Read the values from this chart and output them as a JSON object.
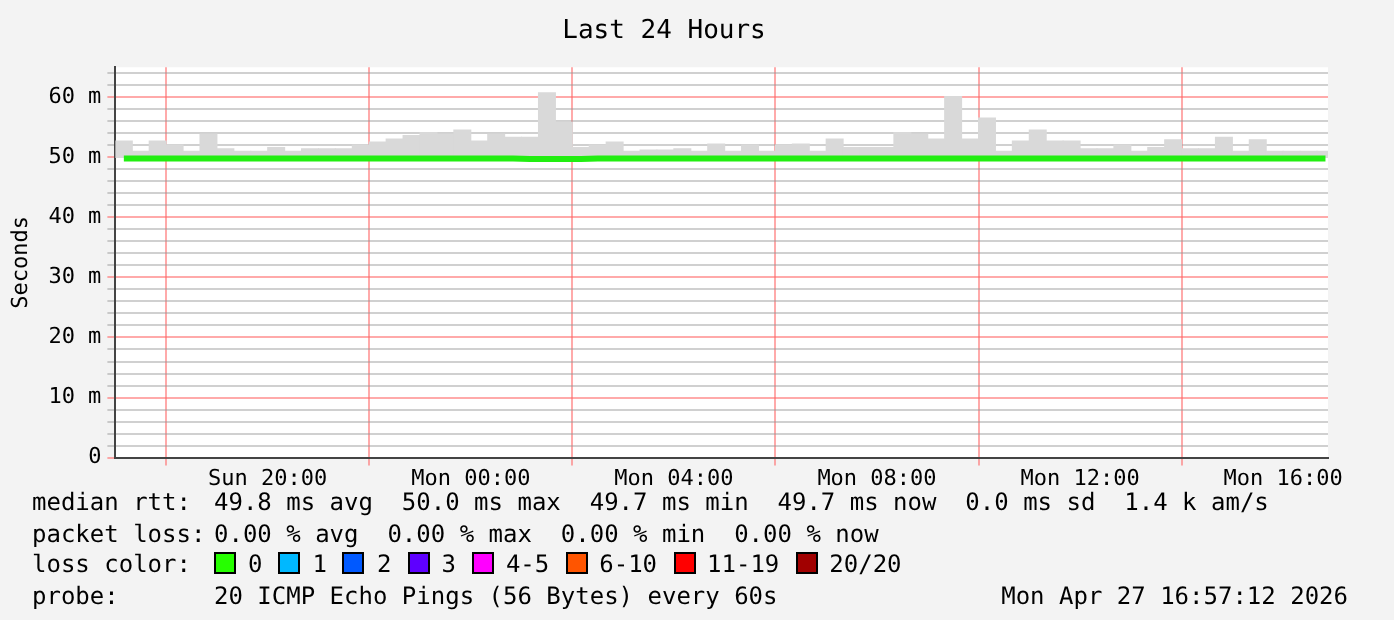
{
  "chart_data": {
    "type": "bar",
    "title": "Last 24 Hours",
    "ylabel": "Seconds",
    "x": [
      "2026-04-26T17:10",
      "2026-04-26T17:30",
      "2026-04-26T17:50",
      "2026-04-26T18:10",
      "2026-04-26T18:30",
      "2026-04-26T18:50",
      "2026-04-26T19:10",
      "2026-04-26T19:30",
      "2026-04-26T19:50",
      "2026-04-26T20:10",
      "2026-04-26T20:30",
      "2026-04-26T20:50",
      "2026-04-26T21:10",
      "2026-04-26T21:30",
      "2026-04-26T21:50",
      "2026-04-26T22:10",
      "2026-04-26T22:30",
      "2026-04-26T22:50",
      "2026-04-26T23:10",
      "2026-04-26T23:30",
      "2026-04-26T23:50",
      "2026-04-27T00:10",
      "2026-04-27T00:30",
      "2026-04-27T00:50",
      "2026-04-27T01:10",
      "2026-04-27T01:30",
      "2026-04-27T01:50",
      "2026-04-27T02:10",
      "2026-04-27T02:30",
      "2026-04-27T02:50",
      "2026-04-27T03:10",
      "2026-04-27T03:30",
      "2026-04-27T03:50",
      "2026-04-27T04:10",
      "2026-04-27T04:30",
      "2026-04-27T04:50",
      "2026-04-27T05:10",
      "2026-04-27T05:30",
      "2026-04-27T05:50",
      "2026-04-27T06:10",
      "2026-04-27T06:30",
      "2026-04-27T06:50",
      "2026-04-27T07:10",
      "2026-04-27T07:30",
      "2026-04-27T07:50",
      "2026-04-27T08:10",
      "2026-04-27T08:30",
      "2026-04-27T08:50",
      "2026-04-27T09:10",
      "2026-04-27T09:30",
      "2026-04-27T09:50",
      "2026-04-27T10:10",
      "2026-04-27T10:30",
      "2026-04-27T10:50",
      "2026-04-27T11:10",
      "2026-04-27T11:30",
      "2026-04-27T11:50",
      "2026-04-27T12:10",
      "2026-04-27T12:30",
      "2026-04-27T12:50",
      "2026-04-27T13:10",
      "2026-04-27T13:30",
      "2026-04-27T13:50",
      "2026-04-27T14:10",
      "2026-04-27T14:30",
      "2026-04-27T14:50",
      "2026-04-27T15:10",
      "2026-04-27T15:30",
      "2026-04-27T15:50",
      "2026-04-27T16:10",
      "2026-04-27T16:30",
      "2026-04-27T16:50"
    ],
    "series": [
      {
        "color": "#d9d9d9",
        "base": [
          50,
          50,
          50,
          50,
          50,
          50,
          50,
          50,
          50,
          50,
          50,
          50,
          50,
          50,
          50,
          50,
          50,
          50,
          50,
          50,
          50,
          50,
          50,
          50,
          50,
          50,
          50,
          50,
          50,
          50,
          50,
          50,
          50,
          50,
          50,
          50,
          50,
          50,
          50,
          50,
          50,
          50,
          50,
          50,
          50,
          50,
          50,
          50,
          50,
          50,
          50,
          50,
          50,
          50,
          50,
          50,
          50,
          50,
          50,
          50,
          50,
          50,
          50,
          50,
          50,
          50,
          50,
          50,
          50,
          50,
          50,
          50
        ],
        "values": [
          2.7,
          1,
          2.7,
          2,
          1,
          3.8,
          1.4,
          1,
          1,
          1.6,
          1,
          1.4,
          1.4,
          1.4,
          2,
          2.5,
          3,
          3.6,
          4.1,
          3.8,
          4.5,
          2.7,
          3.8,
          3.3,
          3.3,
          10.7,
          5.8,
          1.6,
          2,
          2.5,
          1,
          1.2,
          1.2,
          1.4,
          1,
          2.2,
          1,
          2,
          1,
          2,
          2.2,
          1,
          3,
          1.6,
          1.6,
          1.6,
          4.1,
          3.8,
          3,
          10.1,
          3,
          6.5,
          1,
          2.7,
          4.5,
          2.7,
          2.7,
          1.4,
          1.4,
          2,
          1,
          1.6,
          2.9,
          1.4,
          1.4,
          3.3,
          1,
          2.9,
          1,
          1,
          1,
          1
        ]
      },
      {
        "type": "line",
        "color": "#22ee11",
        "values": [
          49.8,
          49.8,
          49.8,
          49.8,
          49.8,
          49.8,
          49.8,
          49.8,
          49.8,
          49.8,
          49.8,
          49.8,
          49.8,
          49.8,
          49.8,
          49.8,
          49.8,
          49.8,
          49.8,
          49.8,
          49.8,
          49.8,
          49.8,
          49.8,
          49.7,
          49.7,
          49.7,
          49.7,
          49.8,
          49.8,
          49.8,
          49.8,
          49.8,
          49.8,
          49.8,
          49.8,
          49.8,
          49.8,
          49.8,
          49.8,
          49.8,
          49.8,
          49.8,
          49.8,
          49.8,
          49.8,
          49.8,
          49.8,
          49.8,
          49.8,
          49.8,
          49.8,
          49.8,
          49.8,
          49.8,
          49.8,
          49.8,
          49.8,
          49.8,
          49.8,
          49.8,
          49.8,
          49.8,
          49.8,
          49.8,
          49.8,
          49.8,
          49.8,
          49.8,
          49.8,
          49.8,
          49.8
        ]
      }
    ],
    "xlim": [
      "2026-04-26T17:00",
      "2026-04-27T16:53"
    ],
    "xticks": [
      {
        "value": "2026-04-26T20:00",
        "label": "Sun 20:00"
      },
      {
        "value": "2026-04-27T00:00",
        "label": "Mon 00:00"
      },
      {
        "value": "2026-04-27T04:00",
        "label": "Mon 04:00"
      },
      {
        "value": "2026-04-27T08:00",
        "label": "Mon 08:00"
      },
      {
        "value": "2026-04-27T12:00",
        "label": "Mon 12:00"
      },
      {
        "value": "2026-04-27T16:00",
        "label": "Mon 16:00"
      }
    ],
    "ylim": [
      0,
      65
    ],
    "yticks": [
      0,
      {
        "value": 2,
        "label": null
      },
      {
        "value": 4,
        "label": null
      },
      {
        "value": 6,
        "label": null
      },
      {
        "value": 8,
        "label": null
      },
      {
        "value": 10,
        "label": "10 m"
      },
      {
        "value": 12,
        "label": null
      },
      {
        "value": 14,
        "label": null
      },
      {
        "value": 16,
        "label": null
      },
      {
        "value": 18,
        "label": null
      },
      {
        "value": 20,
        "label": "20 m"
      },
      {
        "value": 22,
        "label": null
      },
      {
        "value": 24,
        "label": null
      },
      {
        "value": 26,
        "label": null
      },
      {
        "value": 28,
        "label": null
      },
      {
        "value": 30,
        "label": "30 m"
      },
      {
        "value": 32,
        "label": null
      },
      {
        "value": 34,
        "label": null
      },
      {
        "value": 36,
        "label": null
      },
      {
        "value": 38,
        "label": null
      },
      {
        "value": 40,
        "label": "40 m"
      },
      {
        "value": 42,
        "label": null
      },
      {
        "value": 44,
        "label": null
      },
      {
        "value": 46,
        "label": null
      },
      {
        "value": 48,
        "label": null
      },
      {
        "value": 50,
        "label": "50 m"
      },
      {
        "value": 52,
        "label": null
      },
      {
        "value": 54,
        "label": null
      },
      {
        "value": 56,
        "label": null
      },
      {
        "value": 58,
        "label": null
      },
      {
        "value": 60,
        "label": "60 m"
      },
      {
        "value": 62,
        "label": null
      },
      {
        "value": 64,
        "label": null
      }
    ],
    "grid": true,
    "marker": "none",
    "line_style": "solid",
    "annotations": [
      "median rtt:",
      "49.8 ms avg  50.0 ms max  49.7 ms min  49.7 ms now  0.0 ms sd  1.4 k am/s",
      "packet loss:",
      "0.00 % avg  0.00 % max  0.00 % min  0.00 % now",
      "loss color:",
      "0",
      "1",
      "2",
      "3",
      "4-5",
      "6-10",
      "11-19",
      "20/20",
      "probe:",
      "20 ICMP Echo Pings (56 Bytes) every 60s",
      "Mon Apr 27 16:57:12 2026"
    ]
  }
}
